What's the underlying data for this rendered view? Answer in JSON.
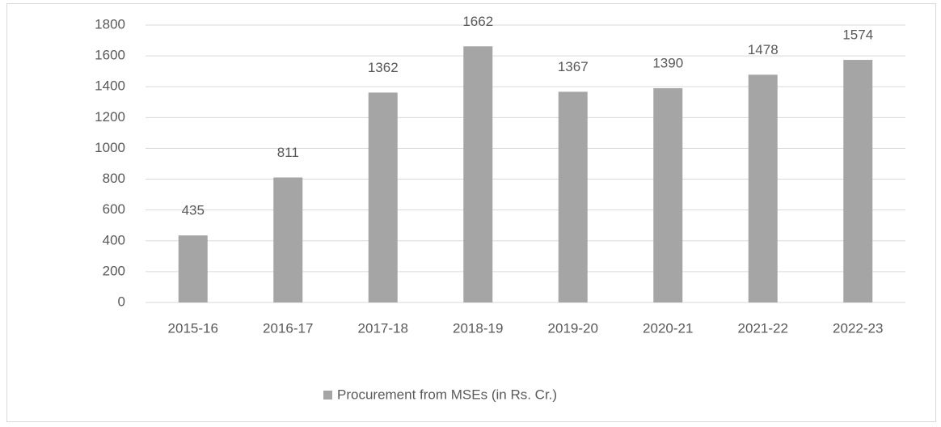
{
  "chart_data": {
    "type": "bar",
    "categories": [
      "2015-16",
      "2016-17",
      "2017-18",
      "2018-19",
      "2019-20",
      "2020-21",
      "2021-22",
      "2022-23"
    ],
    "series": [
      {
        "name": "Procurement from MSEs (in Rs. Cr.)",
        "color": "#a5a5a5",
        "values": [
          435,
          811,
          1362,
          1662,
          1367,
          1390,
          1478,
          1574
        ]
      }
    ],
    "ylim": [
      0,
      1800
    ],
    "yticks": [
      0,
      200,
      400,
      600,
      800,
      1000,
      1200,
      1400,
      1600,
      1800
    ],
    "grid": true,
    "legend": "bottom",
    "data_labels": true
  }
}
